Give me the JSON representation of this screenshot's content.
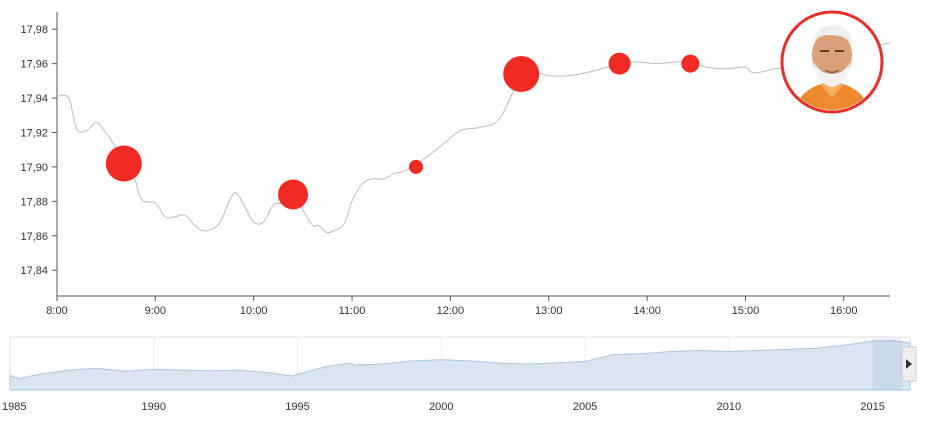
{
  "chart_data": {
    "type": "line",
    "title": "",
    "xlabel": "",
    "ylabel": "",
    "y_ticks": [
      "17,84",
      "17,86",
      "17,88",
      "17,90",
      "17,92",
      "17,94",
      "17,96",
      "17,98"
    ],
    "y_tick_values": [
      17.84,
      17.86,
      17.88,
      17.9,
      17.92,
      17.94,
      17.96,
      17.98
    ],
    "ylim": [
      17.825,
      17.99
    ],
    "x_ticks": [
      "8:00",
      "9:00",
      "10:00",
      "11:00",
      "12:00",
      "13:00",
      "14:00",
      "15:00",
      "16:00"
    ],
    "x_tick_hours": [
      8,
      9,
      10,
      11,
      12,
      13,
      14,
      15,
      16
    ],
    "xlim_hours": [
      8.0,
      16.47
    ],
    "grid": false,
    "series": [
      {
        "x_hours": [
          8.0,
          8.12,
          8.2,
          8.3,
          8.4,
          8.48,
          8.58,
          8.68,
          8.78,
          8.86,
          9.0,
          9.1,
          9.2,
          9.3,
          9.4,
          9.48,
          9.58,
          9.66,
          9.76,
          9.82,
          9.9,
          10.0,
          10.1,
          10.2,
          10.3,
          10.4,
          10.5,
          10.6,
          10.66,
          10.74,
          10.82,
          10.92,
          11.0,
          11.1,
          11.2,
          11.32,
          11.42,
          11.5,
          11.62,
          11.74,
          11.9,
          12.1,
          12.3,
          12.5,
          12.72,
          12.85,
          13.0,
          13.2,
          13.4,
          13.6,
          13.75,
          13.9,
          14.1,
          14.3,
          14.45,
          14.6,
          14.8,
          15.0,
          15.06,
          15.15,
          15.3,
          15.5,
          15.8,
          16.1,
          16.3,
          16.47
        ],
        "values": [
          17.941,
          17.94,
          17.922,
          17.921,
          17.926,
          17.921,
          17.913,
          17.902,
          17.895,
          17.881,
          17.879,
          17.871,
          17.871,
          17.872,
          17.866,
          17.863,
          17.864,
          17.868,
          17.881,
          17.885,
          17.878,
          17.868,
          17.868,
          17.878,
          17.879,
          17.884,
          17.875,
          17.866,
          17.866,
          17.862,
          17.863,
          17.867,
          17.88,
          17.89,
          17.893,
          17.893,
          17.896,
          17.897,
          17.9,
          17.905,
          17.912,
          17.921,
          17.923,
          17.928,
          17.953,
          17.955,
          17.953,
          17.953,
          17.955,
          17.958,
          17.96,
          17.961,
          17.96,
          17.961,
          17.961,
          17.958,
          17.957,
          17.958,
          17.955,
          17.955,
          17.957,
          17.958,
          17.962,
          17.966,
          17.97,
          17.972
        ],
        "color": "#bbbbbb"
      }
    ],
    "bubbles": [
      {
        "x_hours": 8.68,
        "y": 17.902,
        "size": 18,
        "color": "#ef2b24"
      },
      {
        "x_hours": 10.4,
        "y": 17.884,
        "size": 15,
        "color": "#ef2b24"
      },
      {
        "x_hours": 11.65,
        "y": 17.9,
        "size": 7,
        "color": "#ef2b24"
      },
      {
        "x_hours": 12.72,
        "y": 17.954,
        "size": 18,
        "color": "#ef2b24"
      },
      {
        "x_hours": 13.72,
        "y": 17.96,
        "size": 11,
        "color": "#ef2b24"
      },
      {
        "x_hours": 14.44,
        "y": 17.96,
        "size": 9,
        "color": "#ef2b24"
      }
    ],
    "avatar": {
      "border_color": "#e8302a",
      "subject": "portrait",
      "position": "top-right"
    },
    "navigator": {
      "x_ticks": [
        "1985",
        "1990",
        "1995",
        "2000",
        "2005",
        "2010",
        "2015"
      ],
      "x_tick_years": [
        1985,
        1990,
        1995,
        2000,
        2005,
        2010,
        2015
      ],
      "xlim_years": [
        1985,
        2016.3
      ],
      "ylim": [
        0,
        1
      ],
      "fill_color": "#d9e6f1",
      "line_color": "#a9c5de",
      "years": [
        1985,
        1985.3,
        1986,
        1987,
        1988,
        1989,
        1990,
        1991,
        1992,
        1993,
        1994,
        1994.8,
        1995,
        1996,
        1996.8,
        1997,
        1998,
        1999,
        2000,
        2001,
        2002,
        2003,
        2004,
        2005,
        2006,
        2007,
        2008,
        2009,
        2010,
        2011,
        2012,
        2013,
        2014,
        2015,
        2015.7,
        2016.3
      ],
      "values": [
        0.28,
        0.22,
        0.3,
        0.38,
        0.42,
        0.36,
        0.4,
        0.38,
        0.37,
        0.38,
        0.33,
        0.27,
        0.3,
        0.45,
        0.52,
        0.48,
        0.5,
        0.56,
        0.58,
        0.56,
        0.52,
        0.5,
        0.52,
        0.55,
        0.68,
        0.7,
        0.74,
        0.76,
        0.74,
        0.76,
        0.78,
        0.8,
        0.86,
        0.94,
        0.95,
        0.9
      ],
      "selection_years": [
        2015.0,
        2016.3
      ]
    }
  }
}
